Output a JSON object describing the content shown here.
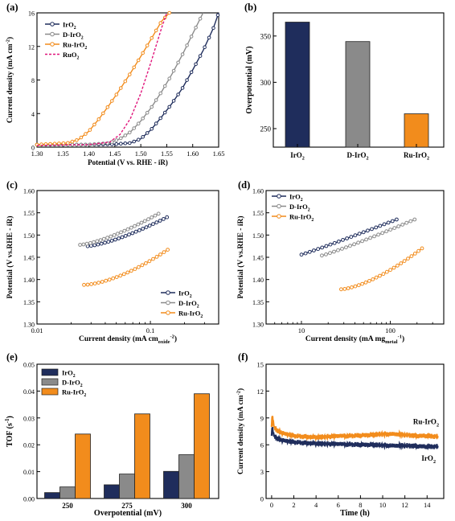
{
  "colors": {
    "IrO2": "#1f2d5c",
    "D-IrO2": "#8a8a8a",
    "Ru-IrO2": "#f28c1c",
    "RuO2": "#e0147a",
    "frame": "#000000"
  },
  "chart_data": [
    {
      "panel": "(a)",
      "type": "line",
      "xlabel": "Potential (V vs. RHE - iR)",
      "ylabel": "Current density (mA cm-2)",
      "xlim": [
        1.3,
        1.65
      ],
      "ylim": [
        0,
        16
      ],
      "xticks": [
        "1.30",
        "1.35",
        "1.40",
        "1.45",
        "1.50",
        "1.55",
        "1.60",
        "1.65"
      ],
      "yticks": [
        "0",
        "4",
        "8",
        "12",
        "16"
      ],
      "legend_position": "top-left",
      "series": [
        {
          "name": "IrO2",
          "key": "IrO2",
          "marker": "circle",
          "dash": false,
          "x": [
            1.3,
            1.4,
            1.45,
            1.48,
            1.5,
            1.52,
            1.54,
            1.56,
            1.58,
            1.6,
            1.62,
            1.64,
            1.65
          ],
          "y": [
            0.3,
            0.3,
            0.35,
            0.5,
            1.0,
            2.1,
            3.6,
            5.2,
            7.0,
            9.2,
            11.5,
            14.2,
            16.0
          ]
        },
        {
          "name": "D-IrO2",
          "key": "D-IrO2",
          "marker": "circle",
          "dash": false,
          "x": [
            1.3,
            1.4,
            1.44,
            1.46,
            1.48,
            1.5,
            1.52,
            1.54,
            1.56,
            1.58,
            1.6,
            1.62
          ],
          "y": [
            0.3,
            0.3,
            0.5,
            1.0,
            1.8,
            3.1,
            4.7,
            6.6,
            8.7,
            11.0,
            13.5,
            16.0
          ]
        },
        {
          "name": "Ru-IrO2",
          "key": "Ru-IrO2",
          "marker": "circle",
          "dash": false,
          "x": [
            1.3,
            1.36,
            1.38,
            1.4,
            1.42,
            1.44,
            1.46,
            1.48,
            1.5,
            1.52,
            1.54,
            1.555
          ],
          "y": [
            0.3,
            0.5,
            0.9,
            1.9,
            3.4,
            5.1,
            6.9,
            8.8,
            10.8,
            12.9,
            15.0,
            16.0
          ]
        },
        {
          "name": "RuO2",
          "key": "RuO2",
          "marker": "none",
          "dash": true,
          "x": [
            1.3,
            1.4,
            1.44,
            1.46,
            1.48,
            1.5,
            1.52,
            1.54,
            1.55
          ],
          "y": [
            0.2,
            0.3,
            0.6,
            1.5,
            3.4,
            6.4,
            10.2,
            14.2,
            16.0
          ]
        }
      ]
    },
    {
      "panel": "(b)",
      "type": "bar",
      "ylabel": "Overpotential (mV)",
      "categories": [
        "IrO2",
        "D-IrO2",
        "Ru-IrO2"
      ],
      "values": [
        365,
        344,
        266
      ],
      "ylim": [
        230,
        375
      ],
      "yticks": [
        "250",
        "300",
        "350"
      ]
    },
    {
      "panel": "(c)",
      "type": "line",
      "xlabel": "Current density (mA cm-2 oxide)",
      "ylabel": "Potential (V vs.RHE - iR)",
      "xscale": "log",
      "xlim": [
        0.01,
        0.4
      ],
      "ylim": [
        1.3,
        1.6
      ],
      "xticks": [
        "0.01",
        "0.1"
      ],
      "yticks": [
        "1.30",
        "1.35",
        "1.40",
        "1.45",
        "1.50",
        "1.55",
        "1.60"
      ],
      "legend_position": "bottom-right",
      "series": [
        {
          "name": "IrO2",
          "key": "IrO2",
          "x_range": [
            0.028,
            0.14
          ],
          "y_range": [
            1.475,
            1.54
          ],
          "curve": 1.4
        },
        {
          "name": "D-IrO2",
          "key": "D-IrO2",
          "x_range": [
            0.024,
            0.118
          ],
          "y_range": [
            1.478,
            1.548
          ],
          "curve": 1.4
        },
        {
          "name": "Ru-IrO2",
          "key": "Ru-IrO2",
          "x_range": [
            0.026,
            0.142
          ],
          "y_range": [
            1.388,
            1.467
          ],
          "curve": 1.6
        }
      ]
    },
    {
      "panel": "(d)",
      "type": "line",
      "xlabel": "Current density (mA mg-1 metal)",
      "ylabel": "Potential (V vs.RHE - iR)",
      "xscale": "log",
      "xlim": [
        4,
        400
      ],
      "ylim": [
        1.3,
        1.6
      ],
      "xticks": [
        "10",
        "100"
      ],
      "yticks": [
        "1.30",
        "1.35",
        "1.40",
        "1.45",
        "1.50",
        "1.55",
        "1.60"
      ],
      "legend_position": "top-left",
      "series": [
        {
          "name": "IrO2",
          "key": "IrO2",
          "x_range": [
            10,
            118
          ],
          "y_range": [
            1.456,
            1.535
          ],
          "curve": 1.05
        },
        {
          "name": "D-IrO2",
          "key": "D-IrO2",
          "x_range": [
            17,
            188
          ],
          "y_range": [
            1.454,
            1.535
          ],
          "curve": 1.1
        },
        {
          "name": "Ru-IrO2",
          "key": "Ru-IrO2",
          "x_range": [
            28,
            228
          ],
          "y_range": [
            1.378,
            1.47
          ],
          "curve": 1.5
        }
      ]
    },
    {
      "panel": "(e)",
      "type": "bar",
      "xlabel": "Overpotential (mV)",
      "ylabel": "TOF (s-1)",
      "categories": [
        "250",
        "275",
        "300"
      ],
      "ylim": [
        0,
        0.05
      ],
      "yticks": [
        "0.00",
        "0.01",
        "0.02",
        "0.03",
        "0.04",
        "0.05"
      ],
      "legend_position": "top-left",
      "series": [
        {
          "name": "IrO2",
          "key": "IrO2",
          "values": [
            0.0022,
            0.0051,
            0.0101
          ]
        },
        {
          "name": "D-IrO2",
          "key": "D-IrO2",
          "values": [
            0.0043,
            0.0091,
            0.0163
          ]
        },
        {
          "name": "Ru-IrO2",
          "key": "Ru-IrO2",
          "values": [
            0.024,
            0.0315,
            0.039
          ]
        }
      ]
    },
    {
      "panel": "(f)",
      "type": "line",
      "xlabel": "Time (h)",
      "ylabel": "Current density (mA cm-2)",
      "xlim": [
        -0.5,
        15.5
      ],
      "ylim": [
        0,
        15
      ],
      "xticks": [
        "0",
        "2",
        "4",
        "6",
        "8",
        "10",
        "12",
        "14"
      ],
      "yticks": [
        "0",
        "3",
        "6",
        "9",
        "12",
        "15"
      ],
      "annotations": [
        "Ru-IrO2",
        "IrO2"
      ],
      "series": [
        {
          "name": "Ru-IrO2",
          "key": "Ru-IrO2",
          "x": [
            0,
            0.05,
            0.2,
            0.5,
            1,
            2,
            3,
            4,
            5,
            6,
            7,
            8,
            9,
            10,
            11,
            12,
            13,
            14,
            15
          ],
          "y": [
            8.0,
            9.3,
            8.0,
            7.6,
            7.3,
            7.0,
            6.9,
            6.85,
            6.9,
            7.0,
            7.0,
            7.05,
            7.1,
            7.2,
            7.2,
            7.1,
            7.0,
            7.0,
            6.9
          ]
        },
        {
          "name": "IrO2",
          "key": "IrO2",
          "x": [
            0,
            0.05,
            0.2,
            0.5,
            1,
            2,
            3,
            4,
            5,
            6,
            7,
            8,
            9,
            10,
            11,
            12,
            13,
            14,
            15
          ],
          "y": [
            7.0,
            8.0,
            7.0,
            6.7,
            6.5,
            6.3,
            6.2,
            6.15,
            6.1,
            6.1,
            6.05,
            6.0,
            6.0,
            5.95,
            5.9,
            5.9,
            5.85,
            5.8,
            5.8
          ]
        }
      ]
    }
  ]
}
